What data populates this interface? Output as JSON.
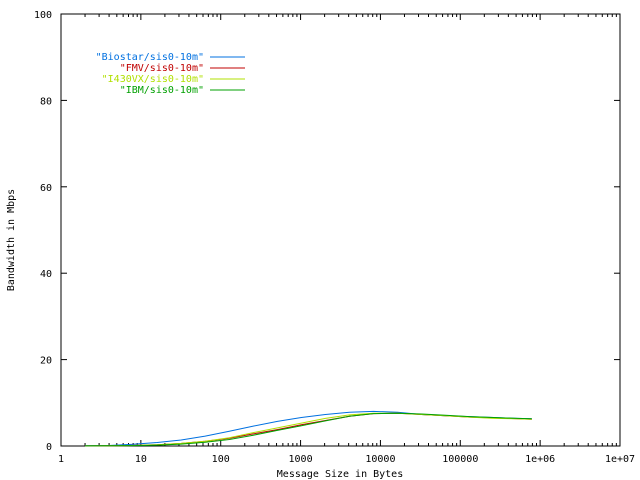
{
  "chart_data": {
    "type": "line",
    "xlabel": "Message Size in Bytes",
    "ylabel": "Bandwidth in Mbps",
    "xscale": "log",
    "xlim": [
      1,
      10000000
    ],
    "ylim": [
      0,
      100
    ],
    "grid": false,
    "legend_position": "top-left",
    "x_ticks": [
      {
        "value": 1,
        "label": "1"
      },
      {
        "value": 10,
        "label": "10"
      },
      {
        "value": 100,
        "label": "100"
      },
      {
        "value": 1000,
        "label": "1000"
      },
      {
        "value": 10000,
        "label": "10000"
      },
      {
        "value": 100000,
        "label": "100000"
      },
      {
        "value": 1000000,
        "label": "1e+06"
      },
      {
        "value": 10000000,
        "label": "1e+07"
      }
    ],
    "y_ticks": [
      {
        "value": 0,
        "label": "0"
      },
      {
        "value": 20,
        "label": "20"
      },
      {
        "value": 40,
        "label": "40"
      },
      {
        "value": 60,
        "label": "60"
      },
      {
        "value": 80,
        "label": "80"
      },
      {
        "value": 100,
        "label": "100"
      }
    ],
    "series": [
      {
        "name": "\"Biostar/sis0-10m\"",
        "color": "#0070e0",
        "points": [
          [
            2,
            0.05
          ],
          [
            4,
            0.12
          ],
          [
            8,
            0.4
          ],
          [
            16,
            0.8
          ],
          [
            32,
            1.4
          ],
          [
            64,
            2.3
          ],
          [
            128,
            3.4
          ],
          [
            256,
            4.6
          ],
          [
            512,
            5.7
          ],
          [
            1024,
            6.6
          ],
          [
            2048,
            7.3
          ],
          [
            4096,
            7.8
          ],
          [
            8192,
            8.0
          ],
          [
            16384,
            7.8
          ],
          [
            32768,
            7.3
          ],
          [
            65536,
            7.0
          ],
          [
            131072,
            6.8
          ],
          [
            262144,
            6.6
          ],
          [
            524288,
            6.4
          ],
          [
            786432,
            6.3
          ]
        ]
      },
      {
        "name": "\"FMV/sis0-10m\"",
        "color": "#c00000",
        "points": [
          [
            2,
            0.02
          ],
          [
            4,
            0.06
          ],
          [
            8,
            0.15
          ],
          [
            16,
            0.3
          ],
          [
            32,
            0.6
          ],
          [
            64,
            1.1
          ],
          [
            128,
            1.8
          ],
          [
            256,
            2.8
          ],
          [
            512,
            3.8
          ],
          [
            1024,
            4.9
          ],
          [
            2048,
            5.9
          ],
          [
            4096,
            6.9
          ],
          [
            8192,
            7.5
          ],
          [
            16384,
            7.6
          ],
          [
            32768,
            7.3
          ],
          [
            65536,
            7.0
          ],
          [
            131072,
            6.7
          ],
          [
            262144,
            6.5
          ],
          [
            524288,
            6.3
          ],
          [
            786432,
            6.2
          ]
        ]
      },
      {
        "name": "\"I430VX/sis0-10m\"",
        "color": "#b0e000",
        "points": [
          [
            2,
            0.02
          ],
          [
            4,
            0.05
          ],
          [
            8,
            0.12
          ],
          [
            16,
            0.3
          ],
          [
            32,
            0.6
          ],
          [
            64,
            1.1
          ],
          [
            128,
            1.9
          ],
          [
            256,
            3.1
          ],
          [
            512,
            4.2
          ],
          [
            1024,
            5.3
          ],
          [
            2048,
            6.4
          ],
          [
            4096,
            7.2
          ],
          [
            8192,
            7.6
          ],
          [
            16384,
            7.6
          ],
          [
            32768,
            7.3
          ],
          [
            65536,
            7.0
          ],
          [
            131072,
            6.7
          ],
          [
            262144,
            6.4
          ],
          [
            524288,
            6.3
          ],
          [
            786432,
            6.2
          ]
        ]
      },
      {
        "name": "\"IBM/sis0-10m\"",
        "color": "#00a000",
        "points": [
          [
            2,
            0.02
          ],
          [
            4,
            0.04
          ],
          [
            8,
            0.1
          ],
          [
            16,
            0.2
          ],
          [
            32,
            0.45
          ],
          [
            64,
            0.85
          ],
          [
            128,
            1.5
          ],
          [
            256,
            2.5
          ],
          [
            512,
            3.6
          ],
          [
            1024,
            4.7
          ],
          [
            2048,
            5.8
          ],
          [
            4096,
            6.9
          ],
          [
            8192,
            7.5
          ],
          [
            16384,
            7.6
          ],
          [
            32768,
            7.4
          ],
          [
            65536,
            7.1
          ],
          [
            131072,
            6.8
          ],
          [
            262144,
            6.6
          ],
          [
            524288,
            6.4
          ],
          [
            786432,
            6.3
          ]
        ]
      }
    ]
  }
}
